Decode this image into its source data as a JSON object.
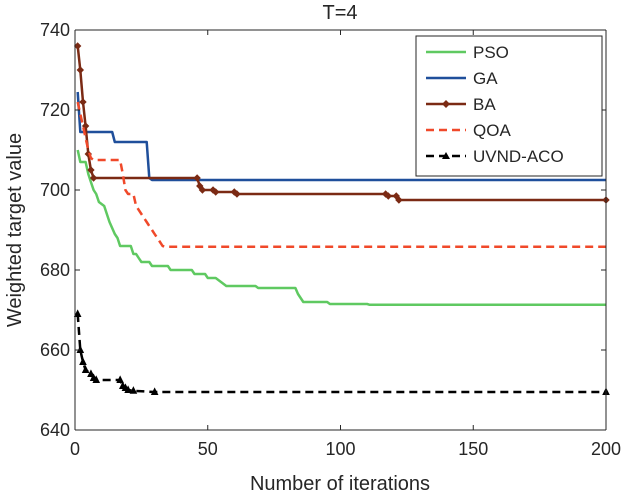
{
  "chart_data": {
    "type": "line",
    "title": "T=4",
    "xlabel": "Number of iterations",
    "ylabel": "Weighted target value",
    "xlim": [
      0,
      200
    ],
    "ylim": [
      640,
      740
    ],
    "xticks": [
      0,
      50,
      100,
      150,
      200
    ],
    "yticks": [
      640,
      660,
      680,
      700,
      720,
      740
    ],
    "grid": false,
    "legend_position": "top-right",
    "series": [
      {
        "name": "PSO",
        "color": "#5fc961",
        "dash": "solid",
        "marker": "none",
        "points": [
          [
            1,
            710
          ],
          [
            2,
            707
          ],
          [
            4,
            707
          ],
          [
            5,
            704
          ],
          [
            6,
            702
          ],
          [
            7,
            700
          ],
          [
            8,
            699
          ],
          [
            9,
            697
          ],
          [
            11,
            696
          ],
          [
            13,
            692
          ],
          [
            15,
            689
          ],
          [
            16,
            688
          ],
          [
            17,
            686
          ],
          [
            21,
            686
          ],
          [
            22,
            684
          ],
          [
            23,
            684
          ],
          [
            24,
            683
          ],
          [
            25,
            682
          ],
          [
            28,
            682
          ],
          [
            29,
            681
          ],
          [
            35,
            681
          ],
          [
            36,
            680
          ],
          [
            44,
            680
          ],
          [
            45,
            679
          ],
          [
            49,
            679
          ],
          [
            50,
            678
          ],
          [
            53,
            678
          ],
          [
            55,
            677
          ],
          [
            57,
            676
          ],
          [
            68,
            676
          ],
          [
            69,
            675.5
          ],
          [
            83,
            675.5
          ],
          [
            84,
            674
          ],
          [
            86,
            672
          ],
          [
            95,
            672
          ],
          [
            96,
            671.5
          ],
          [
            110,
            671.5
          ],
          [
            111,
            671.3
          ],
          [
            200,
            671.3
          ]
        ]
      },
      {
        "name": "GA",
        "color": "#1f4f9b",
        "dash": "solid",
        "marker": "none",
        "points": [
          [
            1,
            724.5
          ],
          [
            2,
            714.5
          ],
          [
            14,
            714.5
          ],
          [
            15,
            712
          ],
          [
            27,
            712
          ],
          [
            28,
            703
          ],
          [
            29,
            702.5
          ],
          [
            200,
            702.5
          ]
        ]
      },
      {
        "name": "BA",
        "color": "#7b2a14",
        "dash": "solid",
        "marker": "diamond",
        "points": [
          [
            1,
            736
          ],
          [
            2,
            730
          ],
          [
            3,
            722
          ],
          [
            4,
            716
          ],
          [
            5,
            709
          ],
          [
            6,
            705
          ],
          [
            7,
            703
          ],
          [
            46,
            703
          ],
          [
            47,
            701
          ],
          [
            48,
            700
          ],
          [
            52,
            700
          ],
          [
            53,
            699.5
          ],
          [
            60,
            699.5
          ],
          [
            61,
            699
          ],
          [
            117,
            699
          ],
          [
            118,
            698.5
          ],
          [
            121,
            698.5
          ],
          [
            122,
            697.5
          ],
          [
            200,
            697.5
          ]
        ]
      },
      {
        "name": "QOA",
        "color": "#f0492a",
        "dash": "dashed",
        "marker": "none",
        "points": [
          [
            1,
            722
          ],
          [
            2,
            719
          ],
          [
            3,
            716
          ],
          [
            4,
            713
          ],
          [
            5,
            710
          ],
          [
            6,
            708
          ],
          [
            7,
            707.5
          ],
          [
            17,
            707.5
          ],
          [
            18,
            704
          ],
          [
            19,
            700
          ],
          [
            20,
            699
          ],
          [
            22,
            699
          ],
          [
            23,
            696
          ],
          [
            25,
            694
          ],
          [
            26,
            693
          ],
          [
            27,
            692
          ],
          [
            28,
            691
          ],
          [
            29,
            690
          ],
          [
            30,
            689
          ],
          [
            31,
            688
          ],
          [
            32,
            687
          ],
          [
            33,
            686
          ],
          [
            34,
            685.8
          ],
          [
            200,
            685.8
          ]
        ]
      },
      {
        "name": "UVND-ACO",
        "color": "#000000",
        "dash": "dashed",
        "marker": "triangle",
        "points": [
          [
            1,
            669
          ],
          [
            2,
            660
          ],
          [
            3,
            657
          ],
          [
            4,
            655
          ],
          [
            6,
            654
          ],
          [
            7,
            653
          ],
          [
            8,
            652.5
          ],
          [
            17,
            652.5
          ],
          [
            18,
            651
          ],
          [
            19,
            650.5
          ],
          [
            20,
            650
          ],
          [
            22,
            649.8
          ],
          [
            30,
            649.5
          ],
          [
            200,
            649.5
          ]
        ]
      }
    ]
  }
}
